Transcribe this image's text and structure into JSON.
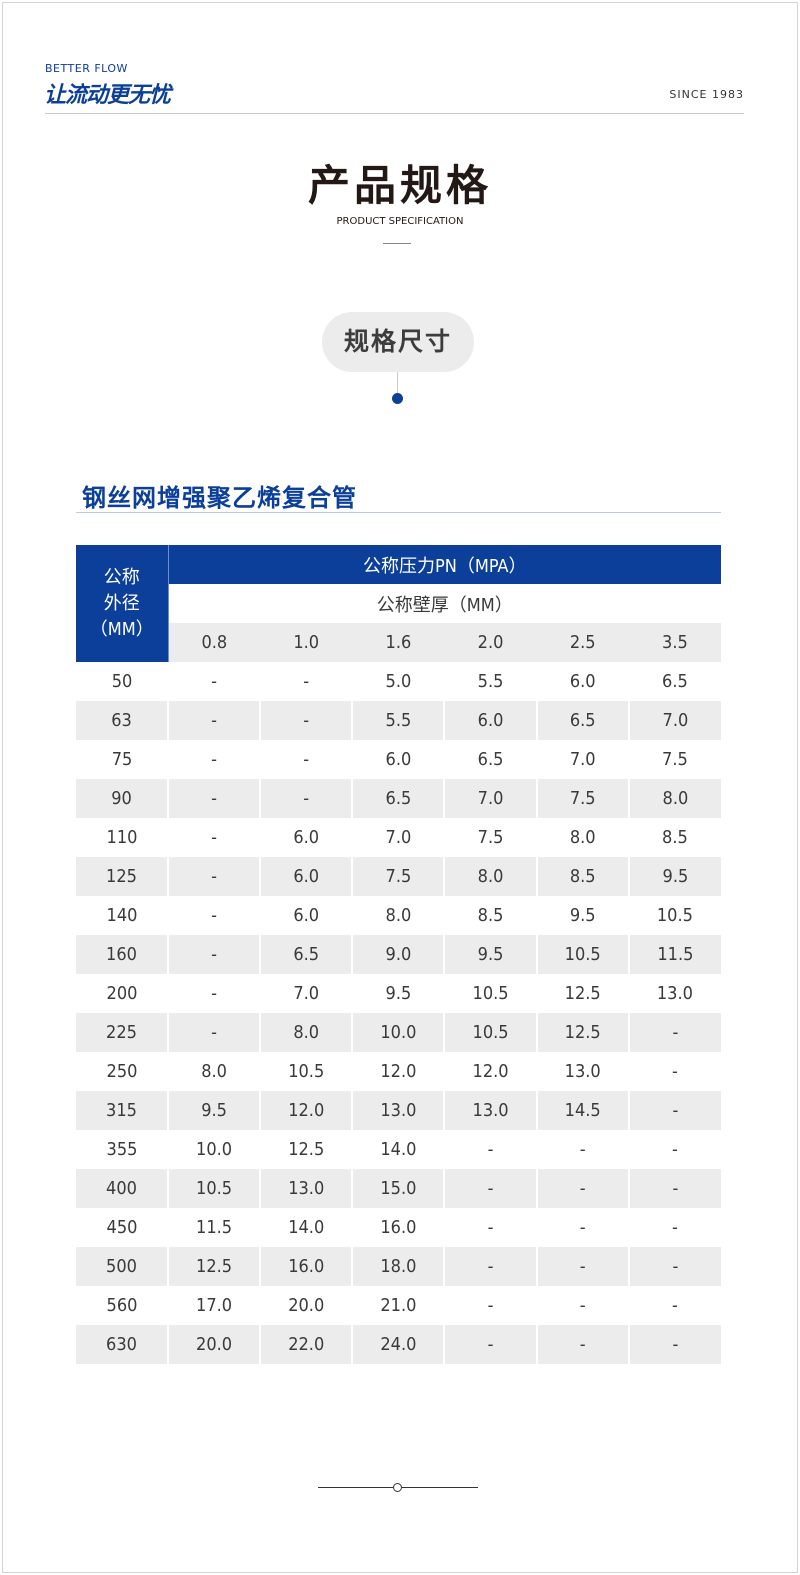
{
  "header": {
    "brand_en": "BETTER FLOW",
    "brand_cn": "让流动更无忧",
    "since": "SINCE 1983"
  },
  "page": {
    "title": "产品规格",
    "subtitle": "PRODUCT SPECIFICATION",
    "pill": "规格尺寸",
    "section_title": "钢丝网增强聚乙烯复合管"
  },
  "colors": {
    "brand": "#0c3f99",
    "stripe": "#ececec"
  },
  "table": {
    "corner": [
      "公称",
      "外径",
      "（MM）"
    ],
    "pn_header": "公称压力PN（MPA）",
    "wall_header": "公称壁厚（MM）",
    "pressures": [
      "0.8",
      "1.0",
      "1.6",
      "2.0",
      "2.5",
      "3.5"
    ],
    "rows": [
      [
        "50",
        "-",
        "-",
        "5.0",
        "5.5",
        "6.0",
        "6.5"
      ],
      [
        "63",
        "-",
        "-",
        "5.5",
        "6.0",
        "6.5",
        "7.0"
      ],
      [
        "75",
        "-",
        "-",
        "6.0",
        "6.5",
        "7.0",
        "7.5"
      ],
      [
        "90",
        "-",
        "-",
        "6.5",
        "7.0",
        "7.5",
        "8.0"
      ],
      [
        "110",
        "-",
        "6.0",
        "7.0",
        "7.5",
        "8.0",
        "8.5"
      ],
      [
        "125",
        "-",
        "6.0",
        "7.5",
        "8.0",
        "8.5",
        "9.5"
      ],
      [
        "140",
        "-",
        "6.0",
        "8.0",
        "8.5",
        "9.5",
        "10.5"
      ],
      [
        "160",
        "-",
        "6.5",
        "9.0",
        "9.5",
        "10.5",
        "11.5"
      ],
      [
        "200",
        "-",
        "7.0",
        "9.5",
        "10.5",
        "12.5",
        "13.0"
      ],
      [
        "225",
        "-",
        "8.0",
        "10.0",
        "10.5",
        "12.5",
        "-"
      ],
      [
        "250",
        "8.0",
        "10.5",
        "12.0",
        "12.0",
        "13.0",
        "-"
      ],
      [
        "315",
        "9.5",
        "12.0",
        "13.0",
        "13.0",
        "14.5",
        "-"
      ],
      [
        "355",
        "10.0",
        "12.5",
        "14.0",
        "-",
        "-",
        "-"
      ],
      [
        "400",
        "10.5",
        "13.0",
        "15.0",
        "-",
        "-",
        "-"
      ],
      [
        "450",
        "11.5",
        "14.0",
        "16.0",
        "-",
        "-",
        "-"
      ],
      [
        "500",
        "12.5",
        "16.0",
        "18.0",
        "-",
        "-",
        "-"
      ],
      [
        "560",
        "17.0",
        "20.0",
        "21.0",
        "-",
        "-",
        "-"
      ],
      [
        "630",
        "20.0",
        "22.0",
        "24.0",
        "-",
        "-",
        "-"
      ]
    ]
  }
}
